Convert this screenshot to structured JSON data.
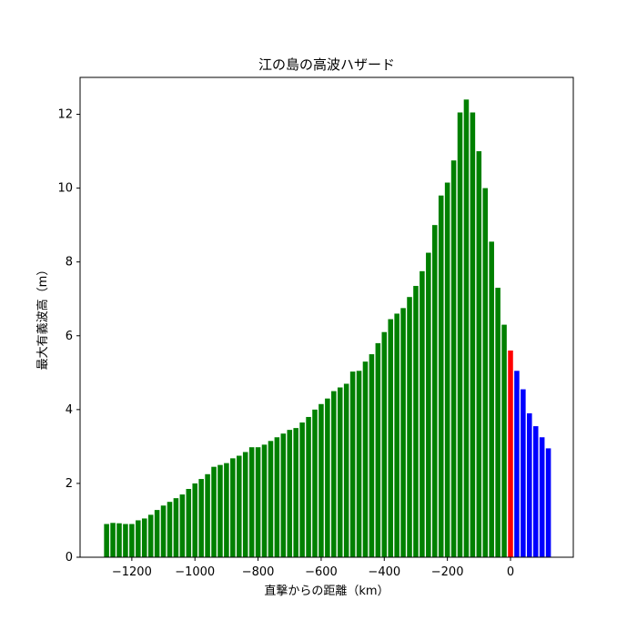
{
  "chart_data": {
    "type": "bar",
    "title": "江の島の高波ハザード",
    "x_label": "直撃からの距離（km）",
    "y_label": "最大有義波高（m）",
    "series": [
      {
        "color": "#008000",
        "x": [
          -1280,
          -1260,
          -1240,
          -1220,
          -1200,
          -1180,
          -1160,
          -1140,
          -1120,
          -1100,
          -1080,
          -1060,
          -1040,
          -1020,
          -1000,
          -980,
          -960,
          -940,
          -920,
          -900,
          -880,
          -860,
          -840,
          -820,
          -800,
          -780,
          -760,
          -740,
          -720,
          -700,
          -680,
          -660,
          -640,
          -620,
          -600,
          -580,
          -560,
          -540,
          -520,
          -500,
          -480,
          -460,
          -440,
          -420,
          -400,
          -380,
          -360,
          -340,
          -320,
          -300,
          -280,
          -260,
          -240,
          -220,
          -200,
          -180,
          -160,
          -140,
          -120,
          -100,
          -80,
          -60,
          -40,
          -20
        ],
        "values": [
          0.9,
          0.93,
          0.92,
          0.9,
          0.9,
          1.0,
          1.05,
          1.15,
          1.28,
          1.4,
          1.5,
          1.6,
          1.7,
          1.85,
          2.0,
          2.12,
          2.25,
          2.45,
          2.5,
          2.55,
          2.68,
          2.75,
          2.85,
          2.98,
          2.98,
          3.05,
          3.15,
          3.25,
          3.35,
          3.45,
          3.5,
          3.65,
          3.8,
          4.0,
          4.15,
          4.3,
          4.5,
          4.6,
          4.7,
          5.03,
          5.05,
          5.3,
          5.5,
          5.8,
          6.1,
          6.45,
          6.6,
          6.75,
          7.05,
          7.35,
          7.75,
          8.25,
          9.0,
          9.8,
          10.15,
          10.75,
          12.05,
          12.4,
          12.05,
          11.0,
          10.0,
          8.55,
          7.3,
          6.3
        ]
      },
      {
        "color": "#ff0000",
        "x": [
          0
        ],
        "values": [
          5.6
        ]
      },
      {
        "color": "#0000ff",
        "x": [
          20,
          40,
          60,
          80,
          100,
          120
        ],
        "values": [
          5.05,
          4.55,
          3.9,
          3.55,
          3.25,
          2.95
        ]
      }
    ],
    "xlim": [
      -1364,
      199
    ],
    "xticks": [
      {
        "value": -1200,
        "label": "−1200"
      },
      {
        "value": -1000,
        "label": "−1000"
      },
      {
        "value": -800,
        "label": "−800"
      },
      {
        "value": -600,
        "label": "−600"
      },
      {
        "value": -400,
        "label": "−400"
      },
      {
        "value": -200,
        "label": "−200"
      },
      0
    ],
    "ylim": [
      0,
      13
    ],
    "yticks": [
      0,
      2,
      4,
      6,
      8,
      10,
      12
    ]
  }
}
